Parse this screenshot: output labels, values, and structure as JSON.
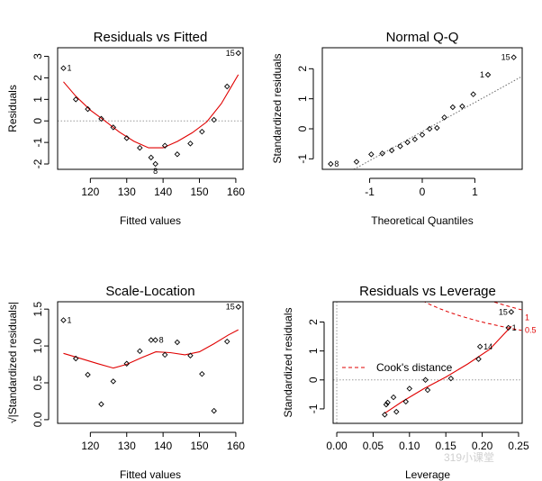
{
  "watermark": "319小课堂",
  "chart_data": [
    {
      "id": "rvf",
      "type": "scatter",
      "title": "Residuals vs Fitted",
      "xlabel": "Fitted values",
      "ylabel": "Residuals",
      "xlim": [
        111,
        162
      ],
      "ylim": [
        -2.25,
        3.4
      ],
      "xticks": [
        120,
        130,
        140,
        150,
        160
      ],
      "yticks": [
        -2,
        -1,
        0,
        1,
        2,
        3
      ],
      "ref_line": {
        "y": 0
      },
      "points": [
        {
          "x": 112.6,
          "y": 2.45,
          "label": "1"
        },
        {
          "x": 116.0,
          "y": 1.0
        },
        {
          "x": 119.3,
          "y": 0.55
        },
        {
          "x": 123.0,
          "y": 0.1
        },
        {
          "x": 126.3,
          "y": -0.3
        },
        {
          "x": 130.0,
          "y": -0.8
        },
        {
          "x": 133.6,
          "y": -1.25
        },
        {
          "x": 136.7,
          "y": -1.7
        },
        {
          "x": 137.9,
          "y": -2.0,
          "label": "8"
        },
        {
          "x": 140.5,
          "y": -1.15
        },
        {
          "x": 143.9,
          "y": -1.55
        },
        {
          "x": 147.5,
          "y": -1.05
        },
        {
          "x": 150.7,
          "y": -0.5
        },
        {
          "x": 154.0,
          "y": 0.05
        },
        {
          "x": 157.6,
          "y": 1.6
        },
        {
          "x": 160.7,
          "y": 3.15,
          "label": "15"
        }
      ],
      "smooth": {
        "x": [
          112.6,
          116,
          120,
          124,
          128,
          132,
          136,
          140,
          144,
          148,
          152,
          156,
          160.7
        ],
        "y": [
          1.82,
          1.15,
          0.5,
          0.0,
          -0.52,
          -0.95,
          -1.25,
          -1.25,
          -0.95,
          -0.55,
          -0.05,
          0.8,
          2.15
        ]
      }
    },
    {
      "id": "qq",
      "type": "scatter",
      "title": "Normal Q-Q",
      "xlabel": "Theoretical Quantiles",
      "ylabel": "Standardized residuals",
      "xlim": [
        -1.9,
        1.9
      ],
      "ylim": [
        -1.35,
        2.7
      ],
      "xticks": [
        -1,
        0,
        1
      ],
      "yticks": [
        -1,
        0,
        1,
        2
      ],
      "ref_line": {
        "from": [
          -1.3,
          -1.35
        ],
        "to": [
          1.9,
          1.75
        ]
      },
      "points": [
        {
          "x": -1.74,
          "y": -1.17,
          "label": "8"
        },
        {
          "x": -1.25,
          "y": -1.1
        },
        {
          "x": -0.97,
          "y": -0.85
        },
        {
          "x": -0.76,
          "y": -0.82
        },
        {
          "x": -0.58,
          "y": -0.72
        },
        {
          "x": -0.42,
          "y": -0.58
        },
        {
          "x": -0.28,
          "y": -0.45
        },
        {
          "x": -0.14,
          "y": -0.35
        },
        {
          "x": 0.0,
          "y": -0.2
        },
        {
          "x": 0.14,
          "y": 0.0
        },
        {
          "x": 0.28,
          "y": 0.03
        },
        {
          "x": 0.42,
          "y": 0.38
        },
        {
          "x": 0.58,
          "y": 0.72
        },
        {
          "x": 0.76,
          "y": 0.75
        },
        {
          "x": 0.97,
          "y": 1.15
        },
        {
          "x": 1.25,
          "y": 1.8,
          "label": "1"
        },
        {
          "x": 1.74,
          "y": 2.38,
          "label": "15"
        }
      ]
    },
    {
      "id": "sl",
      "type": "scatter",
      "title": "Scale-Location",
      "xlabel": "Fitted values",
      "ylabel": "√|Standardized residuals|",
      "xlim": [
        111,
        162
      ],
      "ylim": [
        -0.05,
        1.6
      ],
      "xticks": [
        120,
        130,
        140,
        150,
        160
      ],
      "yticks": [
        0.0,
        0.5,
        1.0,
        1.5
      ],
      "ytick_labels": [
        "0.0",
        "0.5",
        "1.0",
        "1.5"
      ],
      "points": [
        {
          "x": 112.6,
          "y": 1.35,
          "label": "1"
        },
        {
          "x": 116.0,
          "y": 0.83
        },
        {
          "x": 119.3,
          "y": 0.61
        },
        {
          "x": 123.0,
          "y": 0.21
        },
        {
          "x": 126.3,
          "y": 0.52
        },
        {
          "x": 130.0,
          "y": 0.76
        },
        {
          "x": 133.6,
          "y": 0.93
        },
        {
          "x": 136.7,
          "y": 1.08
        },
        {
          "x": 137.9,
          "y": 1.08,
          "label": "8"
        },
        {
          "x": 140.5,
          "y": 0.88
        },
        {
          "x": 143.9,
          "y": 1.05
        },
        {
          "x": 147.5,
          "y": 0.87
        },
        {
          "x": 150.7,
          "y": 0.62
        },
        {
          "x": 154.0,
          "y": 0.12
        },
        {
          "x": 157.6,
          "y": 1.06
        },
        {
          "x": 160.7,
          "y": 1.53,
          "label": "15"
        }
      ],
      "smooth": {
        "x": [
          112.6,
          118,
          122,
          126.3,
          130,
          134,
          138,
          142,
          146,
          150,
          154,
          158,
          160.7
        ],
        "y": [
          0.9,
          0.82,
          0.76,
          0.7,
          0.75,
          0.84,
          0.92,
          0.91,
          0.88,
          0.92,
          1.03,
          1.15,
          1.22
        ]
      }
    },
    {
      "id": "rvl",
      "type": "scatter",
      "title": "Residuals vs Leverage",
      "xlabel": "Leverage",
      "ylabel": "Standardized residuals",
      "xlim": [
        -0.005,
        0.255
      ],
      "ylim": [
        -1.5,
        2.7
      ],
      "xticks": [
        0.0,
        0.05,
        0.1,
        0.15,
        0.2,
        0.25
      ],
      "xtick_labels": [
        "0.00",
        "0.05",
        "0.10",
        "0.15",
        "0.20",
        "0.25"
      ],
      "yticks": [
        -1,
        0,
        1,
        2
      ],
      "ref_line": {
        "y": 0,
        "x": 0
      },
      "legend": {
        "label": "Cook's distance",
        "position": "left"
      },
      "cook_labels": [
        {
          "level": "1"
        },
        {
          "level": "0.5"
        }
      ],
      "points": [
        {
          "x": 0.066,
          "y": -1.2
        },
        {
          "x": 0.068,
          "y": -0.85
        },
        {
          "x": 0.07,
          "y": -0.78
        },
        {
          "x": 0.078,
          "y": -0.6
        },
        {
          "x": 0.082,
          "y": -1.1
        },
        {
          "x": 0.095,
          "y": -0.75
        },
        {
          "x": 0.1,
          "y": -0.3
        },
        {
          "x": 0.122,
          "y": 0.0
        },
        {
          "x": 0.125,
          "y": -0.35
        },
        {
          "x": 0.157,
          "y": 0.05
        },
        {
          "x": 0.195,
          "y": 0.72
        },
        {
          "x": 0.197,
          "y": 1.15,
          "label": "14"
        },
        {
          "x": 0.236,
          "y": 1.8,
          "label": "1"
        },
        {
          "x": 0.24,
          "y": 2.35,
          "label": "15"
        }
      ],
      "smooth": {
        "x": [
          0.066,
          0.09,
          0.12,
          0.15,
          0.18,
          0.21,
          0.24
        ],
        "y": [
          -1.15,
          -0.75,
          -0.3,
          0.1,
          0.55,
          1.05,
          1.85
        ]
      }
    }
  ]
}
